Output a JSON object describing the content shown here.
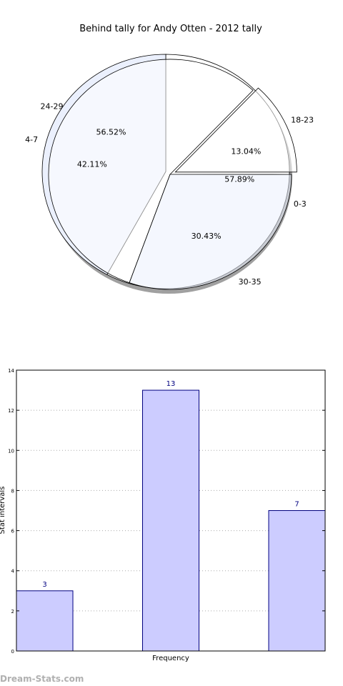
{
  "chart_data": [
    {
      "type": "pie",
      "title": "Behind tally for Andy Otten - 2012 tally",
      "rings": [
        {
          "slices": [
            {
              "label": "0-3",
              "percent": 57.89
            },
            {
              "label": "4-7",
              "percent": 42.11
            }
          ]
        },
        {
          "slices": [
            {
              "label": "18-23",
              "percent": 13.04
            },
            {
              "label": "24-29",
              "percent": 56.52
            },
            {
              "label": "30-35",
              "percent": 30.43
            }
          ]
        }
      ],
      "colors": {
        "light_slice": "#ffffff",
        "blue_slice": "#ebf0fd",
        "edge": "#000000",
        "shadow": "#808080"
      }
    },
    {
      "type": "bar",
      "categories": [
        "",
        "",
        ""
      ],
      "values": [
        3,
        13,
        7
      ],
      "xlabel": "Frequency",
      "ylabel": "Stat intervals",
      "ylim": [
        0,
        14
      ],
      "yticks": [
        0,
        2,
        4,
        6,
        8,
        10,
        12,
        14
      ],
      "grid": true,
      "colors": {
        "bar_fill": "#ccccff",
        "bar_edge": "#000080",
        "value_label": "#000080",
        "grid": "#aaaaaa"
      }
    }
  ],
  "watermark": "Dream-Stats.com"
}
